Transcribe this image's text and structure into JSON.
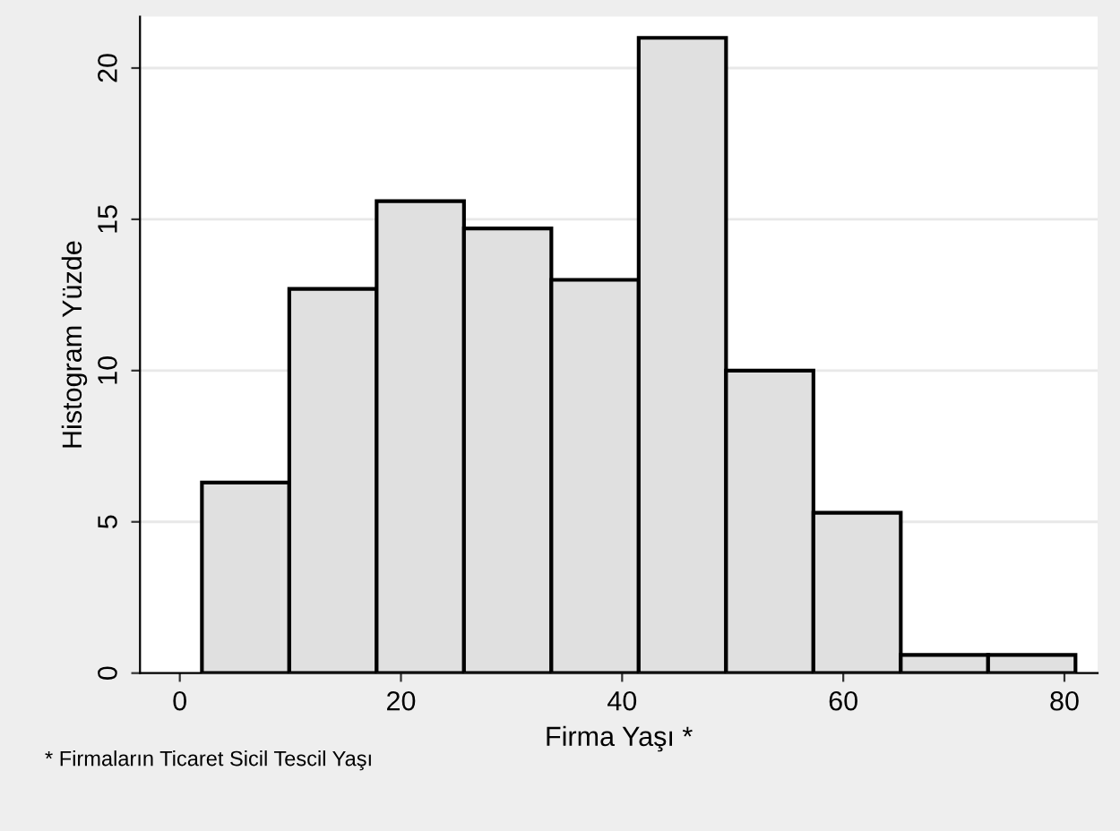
{
  "chart_data": {
    "type": "histogram",
    "xlabel": "Firma Yaşı *",
    "ylabel": "Histogram Yüzde",
    "bins": [
      2,
      9.9,
      17.8,
      25.7,
      33.6,
      41.5,
      49.4,
      57.3,
      65.2,
      73.1,
      81
    ],
    "values": [
      6.3,
      12.7,
      15.6,
      14.7,
      13.0,
      21.0,
      10.0,
      5.3,
      0.6,
      0.6
    ],
    "color": "#e0e0e0",
    "xlim": [
      -3.6,
      83
    ],
    "xticks": [
      0,
      20,
      40,
      60,
      80
    ],
    "ylim": [
      0,
      21.7
    ],
    "yticks": [
      0,
      5,
      10,
      15,
      20
    ],
    "grid": "y",
    "annotations": [
      "* Firmaların Ticaret Sicil Tescil Yaşı"
    ]
  }
}
